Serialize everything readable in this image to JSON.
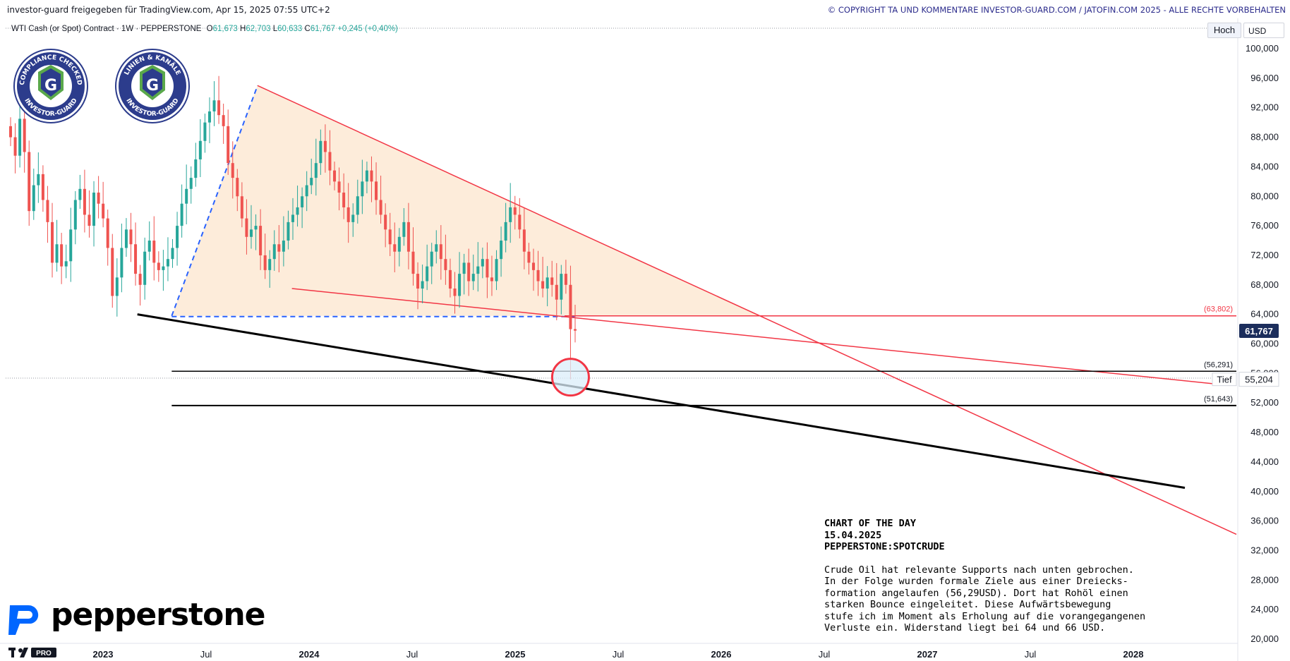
{
  "header": {
    "left_text": "investor-guard freigegeben für TradingView.com, Apr 15, 2025 07:55 UTC+2",
    "right_text": "© COPYRIGHT TA UND KOMMENTARE INVESTOR-GUARD.COM / JATOFIN.COM 2025 - ALLE RECHTE VORBEHALTEN"
  },
  "symbol": {
    "name": "WTI Cash (or Spot) Contract · 1W · PEPPERSTONE",
    "o_label": "O",
    "o_value": "61,673",
    "h_label": "H",
    "h_value": "62,703",
    "l_label": "L",
    "l_value": "60,633",
    "c_label": "C",
    "c_value": "61,767",
    "change": "+0,245 (+0,40%)"
  },
  "toolbar": {
    "scale_label": "Hoch",
    "currency_label": "USD"
  },
  "badges": [
    {
      "top_text": "COMPLIANCE CHECKED",
      "bottom_text": "INVESTOR-GUARD",
      "letter": "G"
    },
    {
      "top_text": "LINIEN & KANÄLE",
      "bottom_text": "INVESTOR-GUARD",
      "letter": "G"
    }
  ],
  "colors": {
    "bull": "#26a69a",
    "bear": "#ef5350",
    "resistance": "#f23645",
    "support": "#000000",
    "pattern_fill": "#fde9d3",
    "dashed": "#2962ff",
    "price_tag": "#1c2e5c",
    "badge": "#2c3c8c"
  },
  "chart_data": {
    "type": "candlestick",
    "title": "WTI Cash (or Spot) Contract · 1W · PEPPERSTONE",
    "y_axis": {
      "ticks": [
        "100,000",
        "96,000",
        "92,000",
        "88,000",
        "84,000",
        "80,000",
        "76,000",
        "72,000",
        "68,000",
        "64,000",
        "60,000",
        "56,000",
        "52,000",
        "48,000",
        "44,000",
        "40,000",
        "36,000",
        "32,000",
        "28,000",
        "24,000",
        "20,000"
      ],
      "ylim": [
        18,
        104
      ]
    },
    "x_axis": {
      "labels": [
        {
          "label": "2023",
          "date": "2023-01"
        },
        {
          "label": "Jul",
          "date": "2023-07"
        },
        {
          "label": "2024",
          "date": "2024-01"
        },
        {
          "label": "Jul",
          "date": "2024-07"
        },
        {
          "label": "2025",
          "date": "2025-01"
        },
        {
          "label": "Jul",
          "date": "2025-07"
        },
        {
          "label": "2026",
          "date": "2026-01"
        },
        {
          "label": "Jul",
          "date": "2026-07"
        },
        {
          "label": "2027",
          "date": "2027-01"
        },
        {
          "label": "Jul",
          "date": "2027-07"
        },
        {
          "label": "2028",
          "date": "2028-01"
        }
      ]
    },
    "price_levels": [
      {
        "label": "(63,802)",
        "value": 63.802,
        "color": "#f23645"
      },
      {
        "label": "(56,291)",
        "value": 56.291,
        "color": "#000000"
      },
      {
        "label": "(51,643)",
        "value": 51.643,
        "color": "#000000"
      }
    ],
    "last_price": {
      "label": "61,767",
      "value": 61.767
    },
    "low_price": {
      "tag": "Tief",
      "label": "55,204",
      "value": 55.204
    },
    "candles_close": [
      88.0,
      85.5,
      90.5,
      86.0,
      78.0,
      81.5,
      83.0,
      79.5,
      76.5,
      71.0,
      73.5,
      70.5,
      71.2,
      75.5,
      79.5,
      81.0,
      77.5,
      76.0,
      80.5,
      79.0,
      77.0,
      73.0,
      66.5,
      69.0,
      73.0,
      75.5,
      73.5,
      69.5,
      68.0,
      72.5,
      74.0,
      71.0,
      70.0,
      70.5,
      71.5,
      73.0,
      76.0,
      79.0,
      81.0,
      82.5,
      85.0,
      87.5,
      90.0,
      91.5,
      93.0,
      91.0,
      89.5,
      84.5,
      82.5,
      80.0,
      77.0,
      74.5,
      75.5,
      76.0,
      72.0,
      70.0,
      71.5,
      73.5,
      72.5,
      74.0,
      76.5,
      77.5,
      78.5,
      80.0,
      81.5,
      82.5,
      84.5,
      87.5,
      86.0,
      83.5,
      82.0,
      80.5,
      78.5,
      76.5,
      77.5,
      80.0,
      82.0,
      83.5,
      82.0,
      79.5,
      77.5,
      75.5,
      73.5,
      72.5,
      74.5,
      76.5,
      72.5,
      69.5,
      67.5,
      68.5,
      70.5,
      72.5,
      73.5,
      71.5,
      70.0,
      67.5,
      66.5,
      69.5,
      71.0,
      68.5,
      69.5,
      70.5,
      71.5,
      69.0,
      68.5,
      71.5,
      74.0,
      76.5,
      78.5,
      77.5,
      75.5,
      72.5,
      71.0,
      70.0,
      68.5,
      67.5,
      69.0,
      68.0,
      66.0,
      69.5,
      68.0,
      62.0,
      61.8
    ],
    "drawings": [
      {
        "name": "upper-trendline",
        "from": {
          "date": "2023-10",
          "price": 95.0
        },
        "to": {
          "date": "2025-01",
          "price": 79.0
        }
      },
      {
        "name": "lower-trendline",
        "from": {
          "date": "2023-12",
          "price": 67.5
        },
        "to": {
          "date": "2028-04",
          "price": 55.0
        }
      },
      {
        "name": "support-trendline",
        "from": {
          "date": "2023-03",
          "price": 64.0
        },
        "to": {
          "date": "2028-04",
          "price": 40.5
        }
      }
    ]
  },
  "annotation": {
    "header_lines": [
      "CHART OF THE DAY",
      "15.04.2025",
      "PEPPERSTONE:SPOTCRUDE"
    ],
    "body_lines": [
      "Crude Oil hat relevante Supports nach unten gebrochen.",
      "In der Folge wurden formale Ziele aus einer Dreiecks-",
      "formation angelaufen (56,29USD). Dort hat Rohöl einen",
      "starken Bounce eingeleitet. Diese Aufwärtsbewegung",
      "stufe ich im Moment als Erholung auf die vorangegangenen",
      "Verluste ein. Widerstand liegt bei 64 und 66 USD."
    ]
  },
  "branding": {
    "broker": "pepperstone",
    "tv_pro": "PRO"
  }
}
